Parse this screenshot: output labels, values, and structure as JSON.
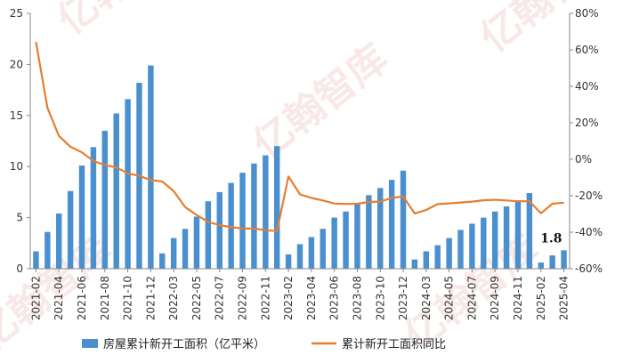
{
  "chart_data": {
    "type": "bar+line",
    "categories": [
      "2021-02",
      "2021-03",
      "2021-04",
      "2021-05",
      "2021-06",
      "2021-07",
      "2021-08",
      "2021-09",
      "2021-10",
      "2021-11",
      "2021-12",
      "2022-02",
      "2022-03",
      "2022-04",
      "2022-05",
      "2022-06",
      "2022-07",
      "2022-08",
      "2022-09",
      "2022-10",
      "2022-11",
      "2022-12",
      "2023-02",
      "2023-03",
      "2023-04",
      "2023-05",
      "2023-06",
      "2023-07",
      "2023-08",
      "2023-09",
      "2023-10",
      "2023-11",
      "2023-12",
      "2024-02",
      "2024-03",
      "2024-04",
      "2024-05",
      "2024-06",
      "2024-07",
      "2024-08",
      "2024-09",
      "2024-10",
      "2024-11",
      "2024-12",
      "2025-02",
      "2025-03",
      "2025-04"
    ],
    "x_tick_labels": [
      "2021-02",
      "2021-04",
      "2021-06",
      "2021-08",
      "2021-10",
      "2021-12",
      "2022-03",
      "2022-05",
      "2022-07",
      "2022-09",
      "2022-11",
      "2023-02",
      "2023-04",
      "2023-06",
      "2023-08",
      "2023-10",
      "2023-12",
      "2024-03",
      "2024-05",
      "2024-07",
      "2024-09",
      "2024-11",
      "2025-02",
      "2025-04"
    ],
    "bar_series": {
      "name": "房屋累计新开工面积（亿平米）",
      "color": "#4a90cf",
      "values": [
        1.7,
        3.6,
        5.4,
        7.6,
        10.1,
        11.9,
        13.5,
        15.2,
        16.6,
        18.2,
        19.9,
        1.5,
        3.0,
        3.9,
        5.1,
        6.6,
        7.5,
        8.4,
        9.4,
        10.3,
        11.1,
        12.0,
        1.4,
        2.4,
        3.1,
        3.9,
        5.0,
        5.6,
        6.4,
        7.2,
        7.9,
        8.7,
        9.6,
        0.9,
        1.7,
        2.3,
        3.0,
        3.8,
        4.4,
        5.0,
        5.6,
        6.1,
        6.7,
        7.4,
        0.6,
        1.3,
        1.8
      ]
    },
    "line_series": {
      "name": "累计新开工面积同比",
      "color": "#e87d2e",
      "values": [
        64.3,
        28.2,
        12.8,
        6.9,
        3.8,
        -0.9,
        -3.2,
        -4.5,
        -7.7,
        -9.1,
        -11.4,
        -12.2,
        -17.5,
        -26.3,
        -30.6,
        -34.4,
        -36.1,
        -37.2,
        -38.0,
        -38.0,
        -38.9,
        -39.4,
        -9.4,
        -19.2,
        -21.2,
        -22.6,
        -24.3,
        -24.5,
        -24.4,
        -23.4,
        -23.2,
        -21.2,
        -20.4,
        -29.7,
        -27.8,
        -24.6,
        -24.2,
        -23.7,
        -23.2,
        -22.5,
        -22.2,
        -22.6,
        -23.0,
        -23.0,
        -29.6,
        -24.4,
        -23.8
      ]
    },
    "y_left": {
      "lim": [
        0,
        25
      ],
      "ticks": [
        "0",
        "5",
        "10",
        "15",
        "20",
        "25"
      ]
    },
    "y_right": {
      "lim": [
        -60,
        80
      ],
      "ticks": [
        "80%",
        "60%",
        "40%",
        "20%",
        "0%",
        "-20%",
        "-40%",
        "-60%"
      ]
    },
    "annotation": "1.8",
    "legend_position": "bottom",
    "grid": false
  },
  "watermark": "亿翰智库"
}
